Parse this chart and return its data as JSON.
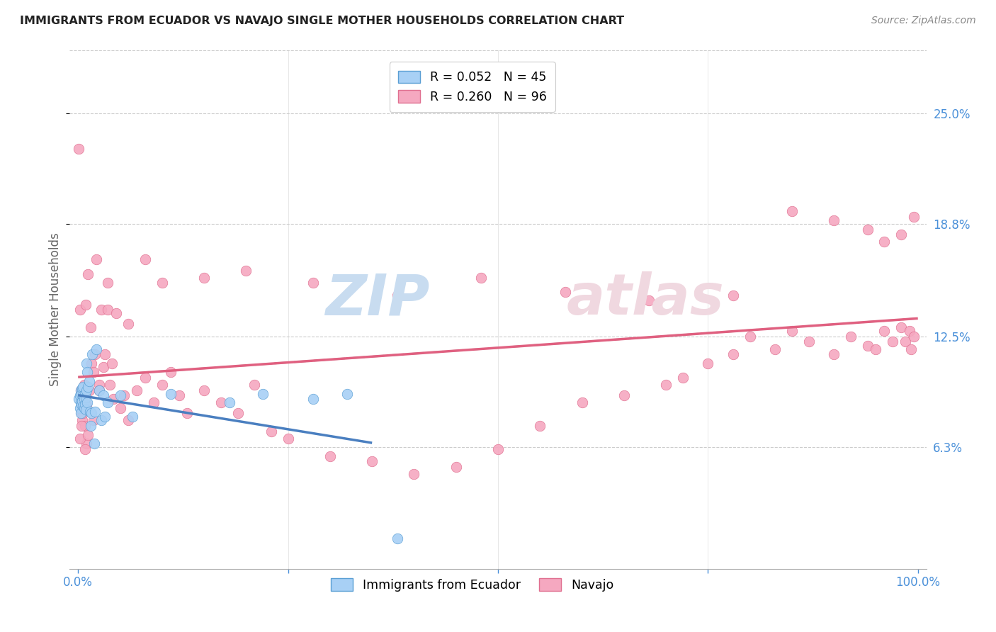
{
  "title": "IMMIGRANTS FROM ECUADOR VS NAVAJO SINGLE MOTHER HOUSEHOLDS CORRELATION CHART",
  "source": "Source: ZipAtlas.com",
  "ylabel": "Single Mother Households",
  "ytick_labels": [
    "6.3%",
    "12.5%",
    "18.8%",
    "25.0%"
  ],
  "ytick_values": [
    0.063,
    0.125,
    0.188,
    0.25
  ],
  "ylim": [
    -0.005,
    0.285
  ],
  "xlim": [
    -0.01,
    1.01
  ],
  "ecuador_color": "#A8D0F5",
  "navajo_color": "#F5A8C0",
  "ecuador_edge_color": "#5A9FD4",
  "navajo_edge_color": "#E07090",
  "ecuador_line_color": "#4A7FC0",
  "navajo_line_color": "#E06080",
  "grey_line_color": "#BBBBBB",
  "title_color": "#222222",
  "source_color": "#888888",
  "axis_label_color": "#4A90D9",
  "ylabel_color": "#666666",
  "watermark_zip_color": "#C8DCF0",
  "watermark_atlas_color": "#F0D8E0",
  "ecuador_N": 45,
  "navajo_N": 96,
  "ecuador_x": [
    0.001,
    0.002,
    0.002,
    0.003,
    0.003,
    0.003,
    0.004,
    0.004,
    0.005,
    0.005,
    0.006,
    0.006,
    0.006,
    0.007,
    0.007,
    0.008,
    0.008,
    0.009,
    0.009,
    0.01,
    0.01,
    0.011,
    0.011,
    0.012,
    0.013,
    0.014,
    0.015,
    0.016,
    0.017,
    0.019,
    0.02,
    0.022,
    0.025,
    0.028,
    0.03,
    0.032,
    0.035,
    0.05,
    0.065,
    0.11,
    0.18,
    0.22,
    0.28,
    0.32,
    0.38
  ],
  "ecuador_y": [
    0.09,
    0.085,
    0.092,
    0.088,
    0.095,
    0.082,
    0.093,
    0.087,
    0.096,
    0.089,
    0.092,
    0.086,
    0.097,
    0.09,
    0.085,
    0.093,
    0.087,
    0.091,
    0.084,
    0.11,
    0.095,
    0.105,
    0.088,
    0.097,
    0.1,
    0.083,
    0.075,
    0.082,
    0.115,
    0.065,
    0.083,
    0.118,
    0.095,
    0.078,
    0.092,
    0.08,
    0.088,
    0.092,
    0.08,
    0.093,
    0.088,
    0.093,
    0.09,
    0.093,
    0.012
  ],
  "navajo_x": [
    0.001,
    0.002,
    0.003,
    0.004,
    0.005,
    0.005,
    0.006,
    0.007,
    0.008,
    0.009,
    0.01,
    0.01,
    0.012,
    0.013,
    0.015,
    0.016,
    0.018,
    0.02,
    0.022,
    0.025,
    0.028,
    0.03,
    0.032,
    0.035,
    0.038,
    0.04,
    0.042,
    0.05,
    0.055,
    0.06,
    0.07,
    0.08,
    0.09,
    0.1,
    0.11,
    0.12,
    0.13,
    0.15,
    0.17,
    0.19,
    0.21,
    0.23,
    0.25,
    0.3,
    0.35,
    0.4,
    0.45,
    0.5,
    0.55,
    0.6,
    0.65,
    0.7,
    0.72,
    0.75,
    0.78,
    0.8,
    0.83,
    0.85,
    0.87,
    0.9,
    0.92,
    0.94,
    0.95,
    0.96,
    0.97,
    0.98,
    0.985,
    0.99,
    0.992,
    0.995,
    0.002,
    0.004,
    0.006,
    0.008,
    0.012,
    0.018,
    0.025,
    0.035,
    0.045,
    0.06,
    0.08,
    0.1,
    0.15,
    0.2,
    0.28,
    0.38,
    0.48,
    0.58,
    0.68,
    0.78,
    0.85,
    0.9,
    0.94,
    0.96,
    0.98,
    0.995
  ],
  "navajo_y": [
    0.23,
    0.14,
    0.095,
    0.082,
    0.09,
    0.078,
    0.085,
    0.098,
    0.075,
    0.143,
    0.087,
    0.065,
    0.16,
    0.095,
    0.13,
    0.11,
    0.105,
    0.115,
    0.168,
    0.098,
    0.14,
    0.108,
    0.115,
    0.155,
    0.098,
    0.11,
    0.09,
    0.085,
    0.092,
    0.078,
    0.095,
    0.102,
    0.088,
    0.098,
    0.105,
    0.092,
    0.082,
    0.095,
    0.088,
    0.082,
    0.098,
    0.072,
    0.068,
    0.058,
    0.055,
    0.048,
    0.052,
    0.062,
    0.075,
    0.088,
    0.092,
    0.098,
    0.102,
    0.11,
    0.115,
    0.125,
    0.118,
    0.128,
    0.122,
    0.115,
    0.125,
    0.12,
    0.118,
    0.128,
    0.122,
    0.13,
    0.122,
    0.128,
    0.118,
    0.125,
    0.068,
    0.075,
    0.082,
    0.062,
    0.07,
    0.078,
    0.095,
    0.14,
    0.138,
    0.132,
    0.168,
    0.155,
    0.158,
    0.162,
    0.155,
    0.148,
    0.158,
    0.15,
    0.145,
    0.148,
    0.195,
    0.19,
    0.185,
    0.178,
    0.182,
    0.192
  ]
}
